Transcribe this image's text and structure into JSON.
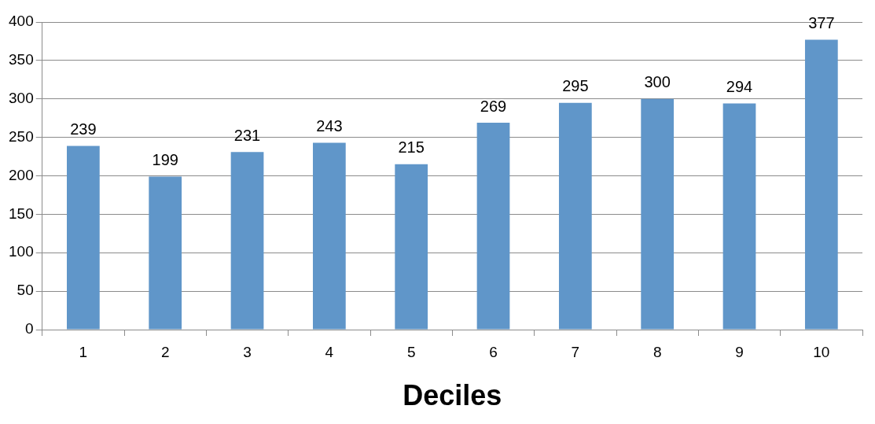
{
  "chart_data": {
    "type": "bar",
    "xlabel": "Deciles",
    "categories": [
      "1",
      "2",
      "3",
      "4",
      "5",
      "6",
      "7",
      "8",
      "9",
      "10"
    ],
    "values": [
      239,
      199,
      231,
      243,
      215,
      269,
      295,
      300,
      294,
      377
    ],
    "color": "#6096c9",
    "ylim": [
      0,
      400
    ],
    "yticks": [
      0,
      50,
      100,
      150,
      200,
      250,
      300,
      350,
      400
    ],
    "grid": "y",
    "legend": false,
    "data_labels": true
  }
}
